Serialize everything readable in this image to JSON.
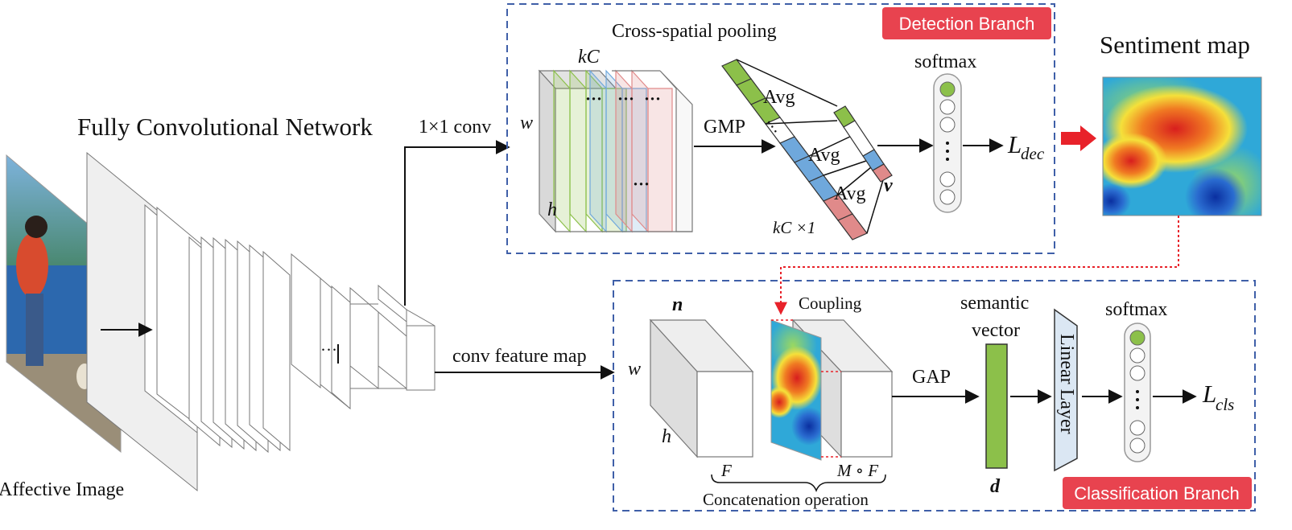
{
  "labels": {
    "fcn_title": "Fully Convolutional Network",
    "affective_image": "Affective Image",
    "conv_1x1": "1×1 conv",
    "conv_feature_map": "conv feature map",
    "cross_spatial_pooling": "Cross-spatial pooling",
    "detection_branch": "Detection Branch",
    "classification_branch": "Classification Branch",
    "sentiment_map": "Sentiment map",
    "gmp": "GMP",
    "avg": "Avg",
    "softmax": "softmax",
    "l_dec_main": "L",
    "l_dec_sub": "dec",
    "l_cls_main": "L",
    "l_cls_sub": "cls",
    "kc": "kC",
    "kc1": "kC ×1",
    "w": "w",
    "h": "h",
    "n": "n",
    "v": "v",
    "d": "d",
    "coupling": "Coupling",
    "semantic": "semantic",
    "vector": "vector",
    "gap": "GAP",
    "linear_layer": "Linear Layer",
    "f": "F",
    "m_f": "M ∘ F",
    "concatenation": "Concatenation operation",
    "dots": "···"
  },
  "colors": {
    "dashed_border": "#3f5fa8",
    "badge_red": "#e8434f",
    "arrow_red": "#e8222a",
    "green": "#8cc04a",
    "blue": "#6fa8dc",
    "pink": "#e08a8a",
    "box_face": "#eeeeee",
    "box_side": "#dedede",
    "linear_layer": "#dbe7f3"
  },
  "icons": {
    "neuron_column": "neuron-column-icon",
    "heatmap": "sentiment-heatmap-image",
    "photo": "affective-photo-image"
  }
}
